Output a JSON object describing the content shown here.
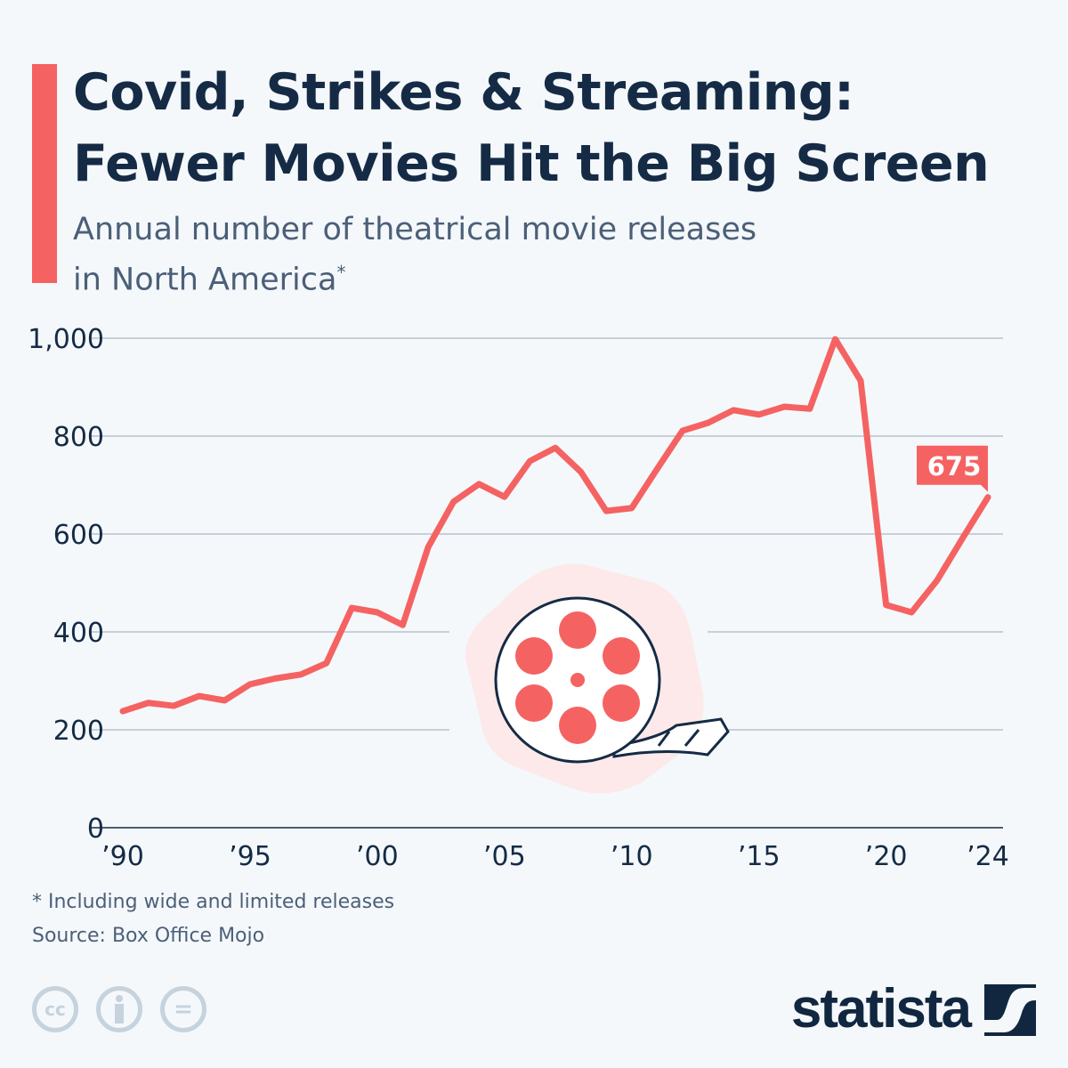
{
  "title_line1": "Covid, Strikes & Streaming:",
  "title_line2": "Fewer Movies Hit the Big Screen",
  "subtitle_line1": "Annual number of theatrical movie releases",
  "subtitle_line2": "in North America",
  "subtitle_mark": "*",
  "footnote": "* Including wide and limited releases",
  "source": "Source: Box Office Mojo",
  "license_icons": [
    "cc-icon",
    "attribution-icon",
    "no-derivatives-icon"
  ],
  "license_labels": {
    "cc": "cc",
    "eq": "="
  },
  "brand": "statista",
  "colors": {
    "line": "#f56262",
    "title": "#152b45",
    "accent_bar": "#f56262",
    "background": "#f4f8fb"
  },
  "chart_data": {
    "type": "line",
    "title": "Covid, Strikes & Streaming: Fewer Movies Hit the Big Screen",
    "xlabel": "",
    "ylabel": "",
    "ylim": [
      0,
      1000
    ],
    "xlim": [
      1990,
      2024
    ],
    "grid": true,
    "yticks": [
      0,
      200,
      400,
      600,
      800,
      1000
    ],
    "ytick_labels": [
      "0",
      "200",
      "400",
      "600",
      "800",
      "1,000"
    ],
    "xticks": [
      1990,
      1995,
      2000,
      2005,
      2010,
      2015,
      2020,
      2024
    ],
    "xtick_labels": [
      "’90",
      "’95",
      "’00",
      "’05",
      "’10",
      "’15",
      "’20",
      "’24"
    ],
    "x": [
      1990,
      1991,
      1992,
      1993,
      1994,
      1995,
      1996,
      1997,
      1998,
      1999,
      2000,
      2001,
      2002,
      2003,
      2004,
      2005,
      2006,
      2007,
      2008,
      2009,
      2010,
      2011,
      2012,
      2013,
      2014,
      2015,
      2016,
      2017,
      2018,
      2019,
      2020,
      2021,
      2022,
      2023,
      2024
    ],
    "values": [
      238,
      255,
      249,
      269,
      260,
      293,
      305,
      313,
      336,
      449,
      440,
      414,
      573,
      666,
      702,
      676,
      749,
      776,
      727,
      647,
      653,
      733,
      811,
      827,
      853,
      844,
      860,
      856,
      998,
      913,
      455,
      440,
      505,
      591,
      675
    ],
    "annotations": [
      {
        "x": 2024,
        "label": "675"
      }
    ]
  }
}
